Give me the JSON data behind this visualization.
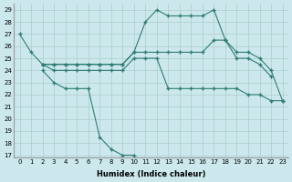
{
  "xlabel": "Humidex (Indice chaleur)",
  "series": {
    "s1_x": [
      0,
      1,
      2,
      3,
      4,
      5,
      6,
      7,
      8,
      9,
      10,
      11,
      12,
      13,
      14,
      15,
      16,
      17,
      18,
      19,
      20,
      21,
      22
    ],
    "s1_y": [
      27,
      25.5,
      24.5,
      24.5,
      24.5,
      24.5,
      24.5,
      24.5,
      24.5,
      24.5,
      25.5,
      28.0,
      29.0,
      28.5,
      28.5,
      28.5,
      28.5,
      29.0,
      26.5,
      25.0,
      25.0,
      24.5,
      23.5
    ],
    "s2_x": [
      2,
      3,
      4,
      5,
      6,
      7,
      8,
      9,
      10,
      11,
      12,
      13,
      14,
      15,
      16,
      17,
      18,
      19,
      20,
      21,
      22,
      23
    ],
    "s2_y": [
      24.5,
      24.5,
      24.5,
      24.5,
      24.5,
      24.5,
      24.5,
      24.5,
      25.5,
      25.5,
      25.5,
      25.5,
      25.5,
      25.5,
      25.5,
      26.5,
      26.5,
      25.5,
      25.5,
      25.0,
      24.0,
      21.5
    ],
    "s3_x": [
      2,
      3,
      4,
      5,
      6,
      7,
      8,
      9,
      10,
      11,
      12,
      13,
      14,
      15,
      16,
      17,
      18,
      19,
      20,
      21,
      22,
      23
    ],
    "s3_y": [
      24.5,
      24.0,
      24.0,
      24.0,
      24.0,
      24.0,
      24.0,
      24.0,
      25.0,
      25.0,
      25.0,
      22.5,
      22.5,
      22.5,
      22.5,
      22.5,
      22.5,
      22.5,
      22.0,
      22.0,
      21.5,
      21.5
    ],
    "s4_x": [
      2,
      3,
      4,
      5,
      6,
      7,
      8,
      9,
      10
    ],
    "s4_y": [
      24.0,
      23.0,
      22.5,
      22.5,
      22.5,
      18.5,
      17.5,
      17.0,
      17.0
    ]
  },
  "color": "#2e7d72",
  "bg_color": "#cce8ec",
  "grid_color": "#aacccc",
  "ylim": [
    17,
    29.5
  ],
  "yticks": [
    17,
    18,
    19,
    20,
    21,
    22,
    23,
    24,
    25,
    26,
    27,
    28,
    29
  ],
  "xticks": [
    0,
    1,
    2,
    3,
    4,
    5,
    6,
    7,
    8,
    9,
    10,
    11,
    12,
    13,
    14,
    15,
    16,
    17,
    18,
    19,
    20,
    21,
    22,
    23
  ]
}
